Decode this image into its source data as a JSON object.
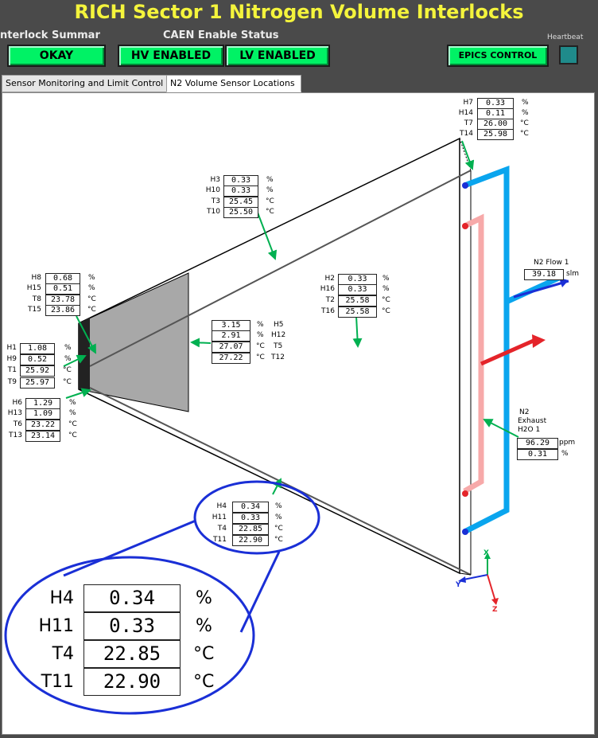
{
  "title": "RICH Sector 1 Nitrogen Volume Interlocks",
  "interlock": {
    "label": "nterlock Summar",
    "button": "OKAY"
  },
  "caen": {
    "label": "CAEN Enable Status",
    "hv": "HV ENABLED",
    "lv": "LV ENABLED"
  },
  "epics": {
    "button": "EPICS CONTROL"
  },
  "heartbeat": {
    "label": "Heartbeat"
  },
  "tabs": [
    {
      "label": "Sensor Monitoring and Limit Control",
      "active": false
    },
    {
      "label": "N2 Volume Sensor Locations",
      "active": true
    }
  ],
  "sensors": {
    "h7": {
      "label": "H7",
      "value": "0.33",
      "unit": "%"
    },
    "h14": {
      "label": "H14",
      "value": "0.11",
      "unit": "%"
    },
    "t7": {
      "label": "T7",
      "value": "26.00",
      "unit": "°C"
    },
    "t14": {
      "label": "T14",
      "value": "25.98",
      "unit": "°C"
    },
    "h3": {
      "label": "H3",
      "value": "0.33",
      "unit": "%"
    },
    "h10": {
      "label": "H10",
      "value": "0.33",
      "unit": "%"
    },
    "t3": {
      "label": "T3",
      "value": "25.45",
      "unit": "°C"
    },
    "t10": {
      "label": "T10",
      "value": "25.50",
      "unit": "°C"
    },
    "h8": {
      "label": "H8",
      "value": "0.68",
      "unit": "%"
    },
    "h15": {
      "label": "H15",
      "value": "0.51",
      "unit": "%"
    },
    "t8": {
      "label": "T8",
      "value": "23.78",
      "unit": "°C"
    },
    "t15": {
      "label": "T15",
      "value": "23.86",
      "unit": "°C"
    },
    "h2": {
      "label": "H2",
      "value": "0.33",
      "unit": "%"
    },
    "h16": {
      "label": "H16",
      "value": "0.33",
      "unit": "%"
    },
    "t2": {
      "label": "T2",
      "value": "25.58",
      "unit": "°C"
    },
    "t16": {
      "label": "T16",
      "value": "25.58",
      "unit": "°C"
    },
    "h5": {
      "label": "H5",
      "value": "3.15",
      "unit": "%"
    },
    "h12": {
      "label": "H12",
      "value": "2.91",
      "unit": "%"
    },
    "t5": {
      "label": "T5",
      "value": "27.07",
      "unit": "°C"
    },
    "t12": {
      "label": "T12",
      "value": "27.22",
      "unit": "°C"
    },
    "h1": {
      "label": "H1",
      "value": "1.08",
      "unit": "%"
    },
    "h9": {
      "label": "H9",
      "value": "0.52",
      "unit": "%"
    },
    "t1": {
      "label": "T1",
      "value": "25.92",
      "unit": "°C"
    },
    "t9": {
      "label": "T9",
      "value": "25.97",
      "unit": "°C"
    },
    "h6": {
      "label": "H6",
      "value": "1.29",
      "unit": "%"
    },
    "h13": {
      "label": "H13",
      "value": "1.09",
      "unit": "%"
    },
    "t6": {
      "label": "T6",
      "value": "23.22",
      "unit": "°C"
    },
    "t13": {
      "label": "T13",
      "value": "23.14",
      "unit": "°C"
    },
    "h4": {
      "label": "H4",
      "value": "0.34",
      "unit": "%"
    },
    "h11": {
      "label": "H11",
      "value": "0.33",
      "unit": "%"
    },
    "t4": {
      "label": "T4",
      "value": "22.85",
      "unit": "°C"
    },
    "t11": {
      "label": "T11",
      "value": "22.90",
      "unit": "°C"
    }
  },
  "flow": {
    "label": "N2 Flow 1",
    "value": "39.18",
    "unit": "slm"
  },
  "exhaust": {
    "label1": "N2",
    "label2": "Exhaust",
    "label3": "H2O 1",
    "ppm_value": "96.29",
    "ppm_unit": "ppm",
    "pct_value": "0.31",
    "pct_unit": "%"
  },
  "axes": {
    "x": "X",
    "y": "Y",
    "z": "Z"
  },
  "colors": {
    "title": "#f4f43c",
    "button_green": "#00f265",
    "arrow_green": "#00b050",
    "pipe_blue": "#0aa5ee",
    "pipe_pink": "#f7a9a9",
    "zoom_ring": "#1a2fd6",
    "shaded": "#a8a8a8"
  }
}
